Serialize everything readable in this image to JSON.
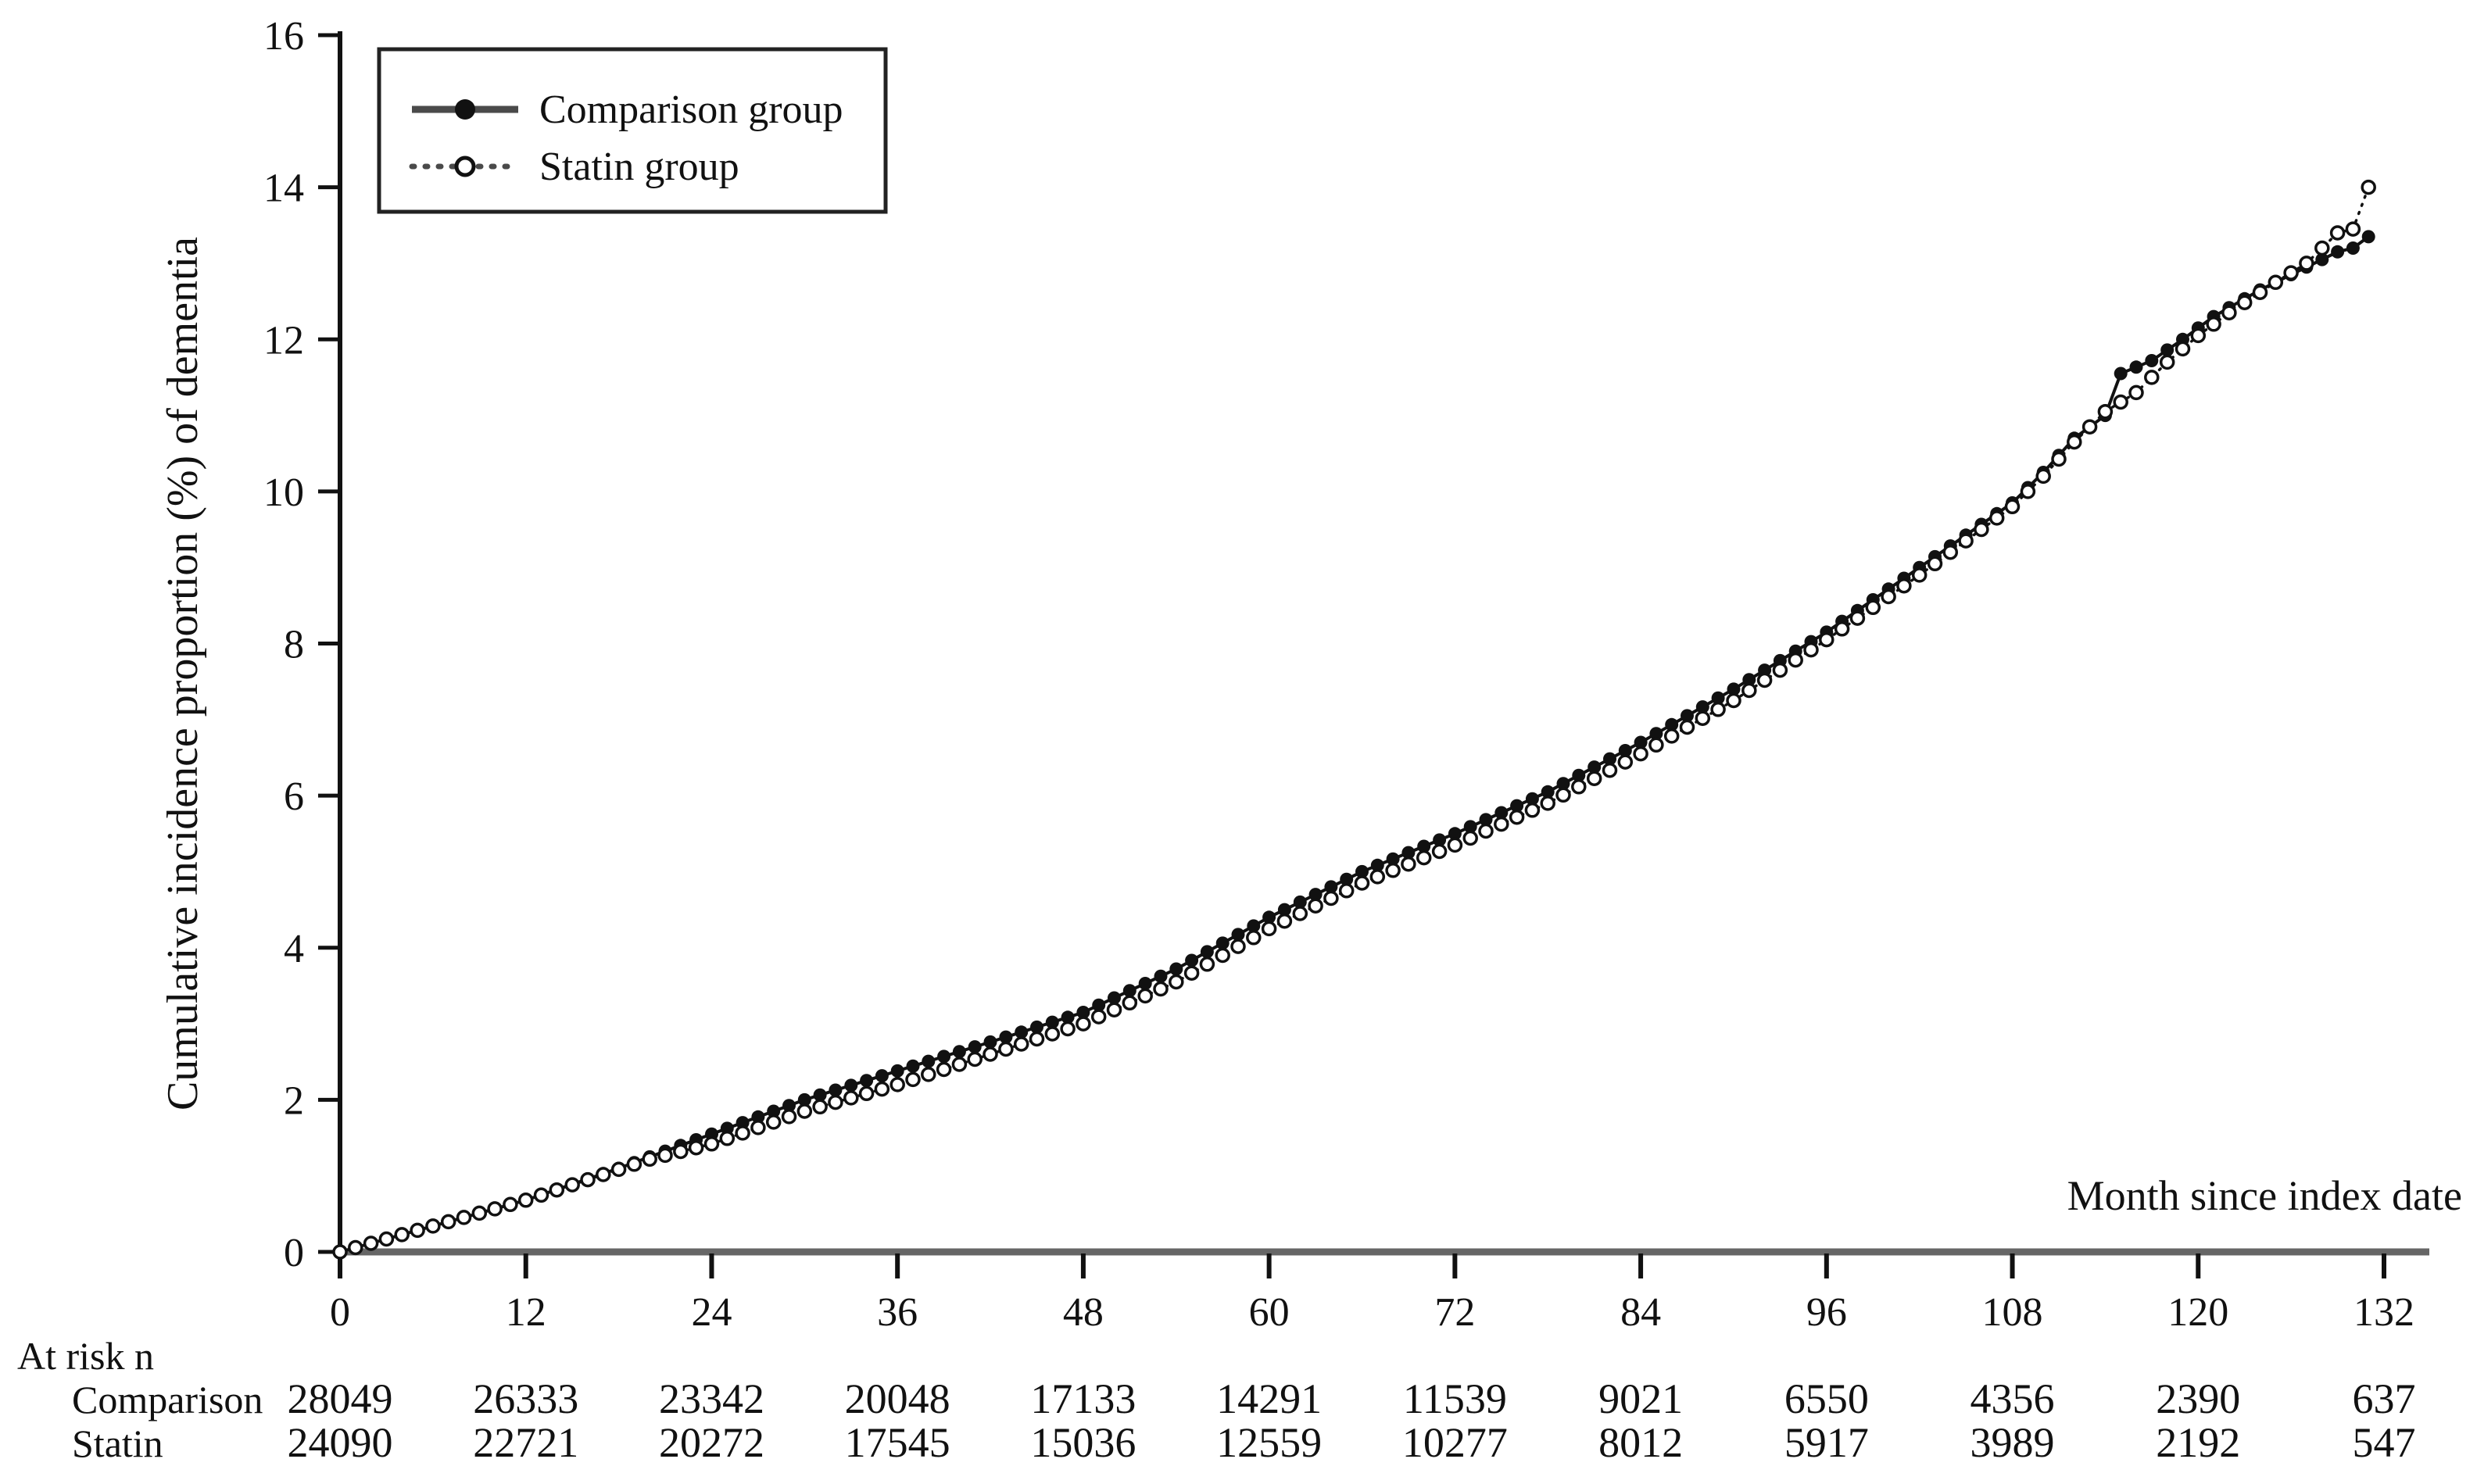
{
  "colors": {
    "ink": "#111111",
    "x_axis_line": "#666666",
    "legend_sample_line": "#4a4a4a",
    "background": "#ffffff"
  },
  "chart_data": {
    "type": "line",
    "title": "",
    "xlabel": "Month since index date",
    "ylabel": "Cumulative incidence proportion (%) of dementia",
    "xlim": [
      0,
      132
    ],
    "ylim": [
      0,
      16
    ],
    "grid": false,
    "legend_position": "top-left",
    "x_ticks": [
      0,
      12,
      24,
      36,
      48,
      60,
      72,
      84,
      96,
      108,
      120,
      132
    ],
    "y_ticks": [
      0,
      2,
      4,
      6,
      8,
      10,
      12,
      14,
      16
    ],
    "legend_items": [
      {
        "label": "Comparison group",
        "marker": "filled-circle",
        "line": "solid"
      },
      {
        "label": "Statin group",
        "marker": "open-circle",
        "line": "dotted"
      }
    ],
    "series": [
      {
        "name": "Comparison group",
        "marker": "filled-circle",
        "line_style": "solid",
        "sample_step_months": 1,
        "anchors": [
          [
            0,
            0
          ],
          [
            6,
            0.34
          ],
          [
            12,
            0.68
          ],
          [
            18,
            1.1
          ],
          [
            24,
            1.55
          ],
          [
            30,
            2.0
          ],
          [
            36,
            2.38
          ],
          [
            42,
            2.76
          ],
          [
            48,
            3.15
          ],
          [
            54,
            3.72
          ],
          [
            60,
            4.4
          ],
          [
            66,
            5.0
          ],
          [
            72,
            5.5
          ],
          [
            78,
            6.05
          ],
          [
            84,
            6.7
          ],
          [
            90,
            7.4
          ],
          [
            96,
            8.15
          ],
          [
            102,
            9.0
          ],
          [
            108,
            9.85
          ],
          [
            110,
            10.25
          ],
          [
            112,
            10.7
          ],
          [
            114,
            11.0
          ],
          [
            115,
            11.55
          ],
          [
            117,
            11.72
          ],
          [
            119,
            12.0
          ],
          [
            121,
            12.3
          ],
          [
            124,
            12.65
          ],
          [
            127,
            12.95
          ],
          [
            129,
            13.15
          ],
          [
            130,
            13.2
          ],
          [
            131,
            13.35
          ]
        ]
      },
      {
        "name": "Statin group",
        "marker": "open-circle",
        "line_style": "dotted",
        "sample_step_months": 1,
        "anchors": [
          [
            0,
            0
          ],
          [
            6,
            0.34
          ],
          [
            12,
            0.68
          ],
          [
            20,
            1.22
          ],
          [
            24,
            1.42
          ],
          [
            30,
            1.85
          ],
          [
            36,
            2.2
          ],
          [
            42,
            2.6
          ],
          [
            48,
            3.0
          ],
          [
            54,
            3.55
          ],
          [
            60,
            4.25
          ],
          [
            66,
            4.85
          ],
          [
            72,
            5.35
          ],
          [
            78,
            5.9
          ],
          [
            84,
            6.55
          ],
          [
            90,
            7.25
          ],
          [
            96,
            8.05
          ],
          [
            102,
            8.9
          ],
          [
            108,
            9.8
          ],
          [
            110,
            10.2
          ],
          [
            112,
            10.65
          ],
          [
            114,
            11.05
          ],
          [
            116,
            11.3
          ],
          [
            118,
            11.7
          ],
          [
            120,
            12.05
          ],
          [
            122,
            12.35
          ],
          [
            125,
            12.75
          ],
          [
            127,
            13.0
          ],
          [
            129,
            13.4
          ],
          [
            130,
            13.45
          ],
          [
            131,
            14.0
          ]
        ]
      }
    ],
    "at_risk": {
      "header": "At risk n",
      "months": [
        0,
        12,
        24,
        36,
        48,
        60,
        72,
        84,
        96,
        108,
        120,
        132
      ],
      "rows": [
        {
          "label": "Comparison",
          "values": [
            28049,
            26333,
            23342,
            20048,
            17133,
            14291,
            11539,
            9021,
            6550,
            4356,
            2390,
            637
          ]
        },
        {
          "label": "Statin",
          "values": [
            24090,
            22721,
            20272,
            17545,
            15036,
            12559,
            10277,
            8012,
            5917,
            3989,
            2192,
            547
          ]
        }
      ]
    }
  }
}
